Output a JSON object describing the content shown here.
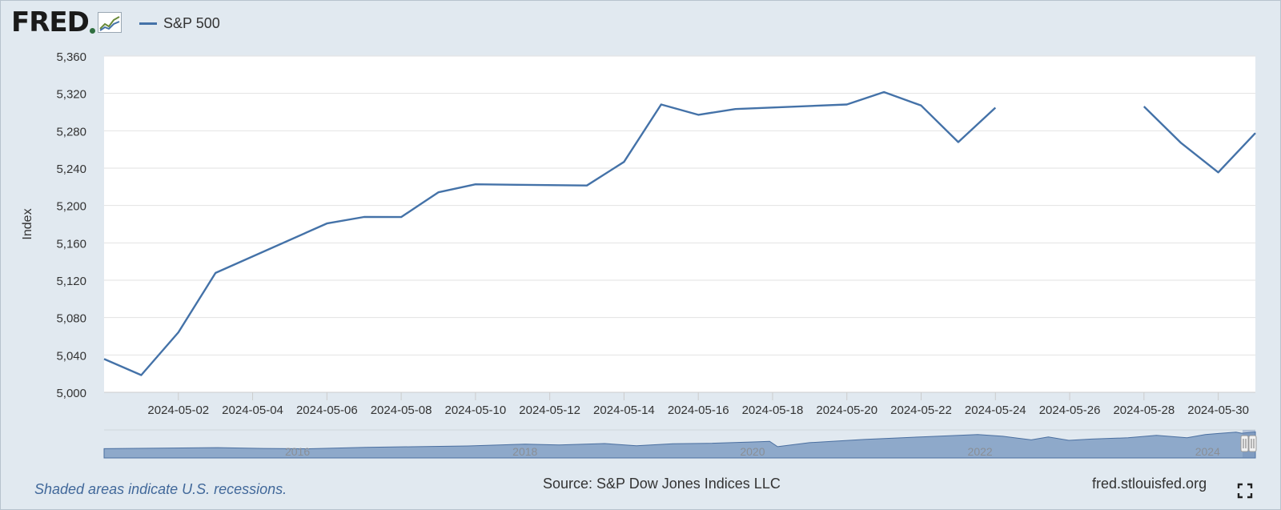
{
  "app": {
    "logo_text": "FRED",
    "logo_icon": "fred-chart-icon",
    "recession_note": "Shaded areas indicate U.S. recessions.",
    "source": "Source: S&P Dow Jones Indices LLC",
    "site": "fred.stlouisfed.org",
    "fullscreen_icon": "fullscreen-icon"
  },
  "colors": {
    "line": "#4472a8",
    "navigator_fill": "#7f9dc3",
    "plot_bg": "#ffffff",
    "page_bg": "#e1e9f0"
  },
  "chart_data": {
    "type": "line",
    "title": "",
    "xlabel": "",
    "ylabel": "Index",
    "ylim": [
      5000,
      5360
    ],
    "yticks": [
      "5,000",
      "5,040",
      "5,080",
      "5,120",
      "5,160",
      "5,200",
      "5,240",
      "5,280",
      "5,320",
      "5,360"
    ],
    "ytick_values": [
      5000,
      5040,
      5080,
      5120,
      5160,
      5200,
      5240,
      5280,
      5320,
      5360
    ],
    "xlim": [
      "2024-04-30",
      "2024-05-31"
    ],
    "xticks": [
      "2024-05-02",
      "2024-05-04",
      "2024-05-06",
      "2024-05-08",
      "2024-05-10",
      "2024-05-12",
      "2024-05-14",
      "2024-05-16",
      "2024-05-18",
      "2024-05-20",
      "2024-05-22",
      "2024-05-24",
      "2024-05-26",
      "2024-05-28",
      "2024-05-30"
    ],
    "legend": "top-left",
    "grid": true,
    "series": [
      {
        "name": "S&P 500",
        "points": [
          {
            "date": "2024-04-30",
            "value": 5035.69
          },
          {
            "date": "2024-05-01",
            "value": 5018.39
          },
          {
            "date": "2024-05-02",
            "value": 5064.2
          },
          {
            "date": "2024-05-03",
            "value": 5127.79
          },
          {
            "date": "2024-05-06",
            "value": 5180.74
          },
          {
            "date": "2024-05-07",
            "value": 5187.7
          },
          {
            "date": "2024-05-08",
            "value": 5187.67
          },
          {
            "date": "2024-05-09",
            "value": 5214.08
          },
          {
            "date": "2024-05-10",
            "value": 5222.68
          },
          {
            "date": "2024-05-13",
            "value": 5221.42
          },
          {
            "date": "2024-05-14",
            "value": 5246.68
          },
          {
            "date": "2024-05-15",
            "value": 5308.15
          },
          {
            "date": "2024-05-16",
            "value": 5297.1
          },
          {
            "date": "2024-05-17",
            "value": 5303.27
          },
          {
            "date": "2024-05-20",
            "value": 5308.13
          },
          {
            "date": "2024-05-21",
            "value": 5321.41
          },
          {
            "date": "2024-05-22",
            "value": 5307.01
          },
          {
            "date": "2024-05-23",
            "value": 5267.84
          },
          {
            "date": "2024-05-24",
            "value": 5304.72
          },
          {
            "date": "2024-05-27",
            "value": null
          },
          {
            "date": "2024-05-28",
            "value": 5306.04
          },
          {
            "date": "2024-05-29",
            "value": 5266.95
          },
          {
            "date": "2024-05-30",
            "value": 5235.48
          },
          {
            "date": "2024-05-31",
            "value": 5277.51
          }
        ]
      }
    ],
    "navigator": {
      "tick_labels": [
        "2016",
        "2018",
        "2020",
        "2022",
        "2024"
      ],
      "tick_years": [
        2016,
        2018,
        2020,
        2022,
        2024
      ],
      "year_range": [
        2014.3,
        2024.42
      ],
      "history": [
        {
          "year": 2014.3,
          "value": 1880
        },
        {
          "year": 2014.8,
          "value": 2000
        },
        {
          "year": 2015.3,
          "value": 2090
        },
        {
          "year": 2015.7,
          "value": 1930
        },
        {
          "year": 2016.1,
          "value": 1870
        },
        {
          "year": 2016.6,
          "value": 2160
        },
        {
          "year": 2017.0,
          "value": 2270
        },
        {
          "year": 2017.5,
          "value": 2440
        },
        {
          "year": 2018.0,
          "value": 2820
        },
        {
          "year": 2018.3,
          "value": 2630
        },
        {
          "year": 2018.7,
          "value": 2920
        },
        {
          "year": 2018.98,
          "value": 2480
        },
        {
          "year": 2019.3,
          "value": 2900
        },
        {
          "year": 2019.6,
          "value": 2960
        },
        {
          "year": 2019.98,
          "value": 3230
        },
        {
          "year": 2020.15,
          "value": 3380
        },
        {
          "year": 2020.22,
          "value": 2300
        },
        {
          "year": 2020.5,
          "value": 3100
        },
        {
          "year": 2020.98,
          "value": 3750
        },
        {
          "year": 2021.5,
          "value": 4300
        },
        {
          "year": 2021.98,
          "value": 4770
        },
        {
          "year": 2022.2,
          "value": 4400
        },
        {
          "year": 2022.45,
          "value": 3670
        },
        {
          "year": 2022.6,
          "value": 4280
        },
        {
          "year": 2022.78,
          "value": 3580
        },
        {
          "year": 2022.98,
          "value": 3840
        },
        {
          "year": 2023.3,
          "value": 4100
        },
        {
          "year": 2023.55,
          "value": 4580
        },
        {
          "year": 2023.82,
          "value": 4120
        },
        {
          "year": 2023.98,
          "value": 4770
        },
        {
          "year": 2024.25,
          "value": 5250
        },
        {
          "year": 2024.3,
          "value": 5020
        },
        {
          "year": 2024.42,
          "value": 5300
        }
      ],
      "window": [
        "2024-04-30",
        "2024-05-31"
      ]
    }
  }
}
